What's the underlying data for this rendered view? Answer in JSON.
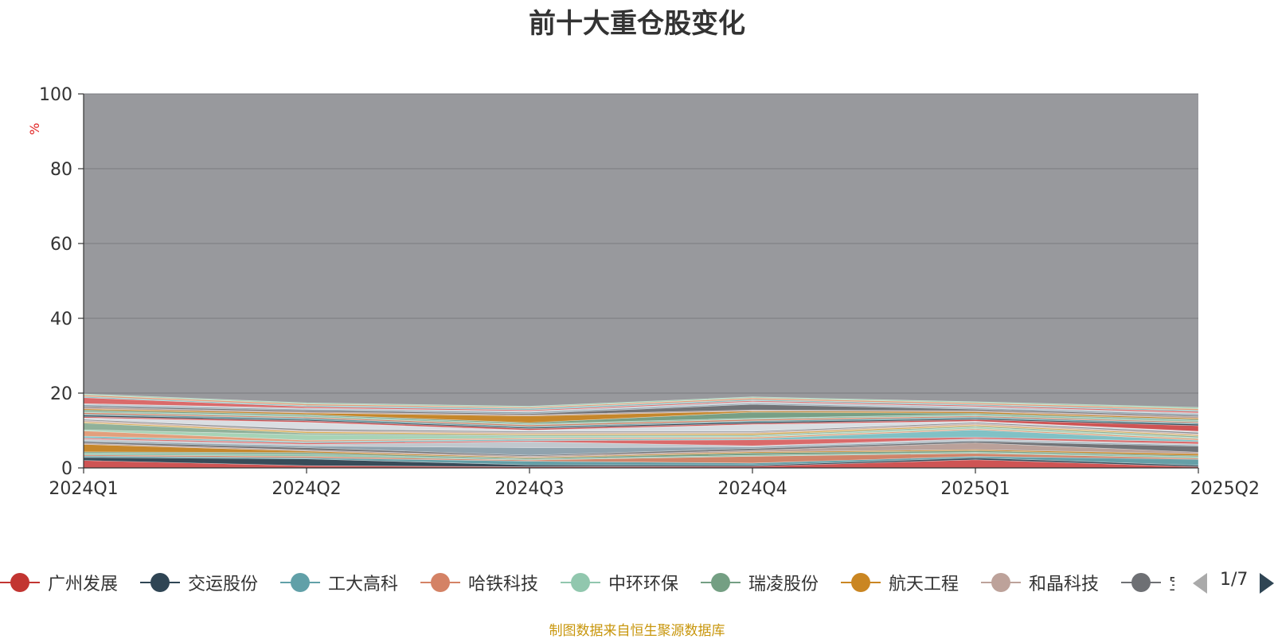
{
  "chart_data": {
    "type": "area",
    "title": "前十大重仓股变化",
    "ylabel": "%",
    "xlabel": "",
    "categories": [
      "2024Q1",
      "2024Q2",
      "2024Q3",
      "2024Q4",
      "2025Q1",
      "2025Q2"
    ],
    "y_ticks": [
      "0",
      "20",
      "40",
      "60",
      "80",
      "100"
    ],
    "ylim": [
      0,
      100
    ],
    "grid": true,
    "stacked": true,
    "remainder_color": "#98999d",
    "series_values": [
      [
        2.0,
        0.6,
        0.3,
        0.4,
        2.2,
        0.3
      ],
      [
        0.8,
        1.8,
        0.5,
        0.3,
        0.5,
        0.4
      ],
      [
        0.4,
        0.3,
        1.0,
        0.6,
        0.4,
        1.6
      ],
      [
        0.3,
        0.4,
        0.3,
        1.8,
        0.8,
        0.3
      ],
      [
        0.5,
        0.6,
        0.2,
        0.3,
        0.3,
        0.4
      ],
      [
        0.3,
        0.4,
        0.3,
        0.6,
        0.4,
        0.3
      ],
      [
        2.0,
        0.4,
        0.2,
        0.3,
        0.3,
        0.5
      ],
      [
        0.3,
        0.3,
        0.3,
        0.4,
        1.8,
        0.4
      ],
      [
        0.4,
        0.6,
        0.3,
        0.5,
        0.4,
        1.6
      ],
      [
        0.3,
        0.5,
        2.0,
        0.4,
        0.3,
        0.3
      ],
      [
        0.4,
        0.4,
        1.6,
        0.3,
        0.4,
        0.3
      ],
      [
        0.3,
        0.4,
        0.3,
        1.6,
        0.4,
        0.6
      ],
      [
        0.5,
        0.3,
        0.4,
        0.3,
        2.0,
        0.4
      ],
      [
        1.4,
        0.4,
        0.3,
        0.4,
        0.3,
        0.4
      ],
      [
        0.3,
        1.5,
        0.5,
        0.3,
        0.4,
        0.3
      ],
      [
        1.8,
        0.4,
        0.3,
        0.3,
        0.3,
        0.4
      ],
      [
        0.3,
        0.4,
        0.3,
        0.4,
        0.3,
        0.3
      ],
      [
        0.4,
        0.3,
        0.4,
        0.3,
        0.4,
        0.3
      ],
      [
        0.3,
        0.4,
        0.3,
        0.3,
        0.3,
        0.4
      ],
      [
        0.4,
        1.8,
        0.3,
        1.8,
        0.3,
        0.3
      ],
      [
        0.3,
        0.4,
        0.4,
        0.3,
        0.4,
        1.5
      ],
      [
        0.4,
        0.3,
        0.3,
        0.4,
        0.3,
        0.4
      ],
      [
        0.3,
        0.4,
        0.3,
        0.3,
        0.4,
        0.3
      ],
      [
        0.4,
        0.3,
        0.4,
        0.4,
        0.3,
        0.3
      ],
      [
        0.3,
        0.4,
        0.3,
        0.3,
        0.4,
        0.4
      ],
      [
        0.4,
        0.3,
        0.3,
        1.6,
        0.3,
        0.3
      ],
      [
        0.3,
        0.4,
        1.8,
        0.3,
        0.4,
        0.3
      ],
      [
        0.4,
        0.3,
        0.3,
        0.3,
        0.3,
        0.4
      ],
      [
        0.3,
        0.4,
        0.3,
        1.5,
        0.4,
        0.3
      ],
      [
        0.4,
        0.3,
        0.4,
        0.3,
        0.3,
        0.4
      ],
      [
        0.3,
        0.3,
        0.3,
        0.4,
        0.4,
        0.3
      ],
      [
        1.6,
        0.4,
        0.3,
        0.3,
        0.3,
        0.4
      ],
      [
        0.3,
        0.3,
        0.4,
        0.3,
        0.3,
        0.3
      ],
      [
        0.4,
        0.4,
        0.3,
        0.4,
        0.4,
        0.4
      ],
      [
        0.3,
        0.3,
        0.3,
        0.3,
        0.3,
        0.4
      ]
    ],
    "palette": [
      "#d34e4e",
      "#2f4554",
      "#61a0a8",
      "#d48265",
      "#91c7ae",
      "#749f83",
      "#ca8622",
      "#bda29a",
      "#6e7074",
      "#8fa4b0",
      "#c4ccd3",
      "#e06666",
      "#7fc4c9",
      "#e8a07a",
      "#a8d8b9",
      "#8fb39a",
      "#e0b050",
      "#d2b8b0",
      "#8a8d92",
      "#e0e4e8"
    ],
    "legend": {
      "position": "bottom",
      "items": [
        {
          "name": "广州发展",
          "color": "#c23531"
        },
        {
          "name": "交运股份",
          "color": "#2f4554"
        },
        {
          "name": "工大高科",
          "color": "#61a0a8"
        },
        {
          "name": "哈铁科技",
          "color": "#d48265"
        },
        {
          "name": "中环环保",
          "color": "#91c7ae"
        },
        {
          "name": "瑞凌股份",
          "color": "#749f83"
        },
        {
          "name": "航天工程",
          "color": "#ca8622"
        },
        {
          "name": "和晶科技",
          "color": "#bda29a"
        },
        {
          "name": "宝",
          "color": "#6e7074"
        }
      ],
      "page_text": "1/7"
    }
  },
  "source_note": "制图数据来自恒生聚源数据库"
}
